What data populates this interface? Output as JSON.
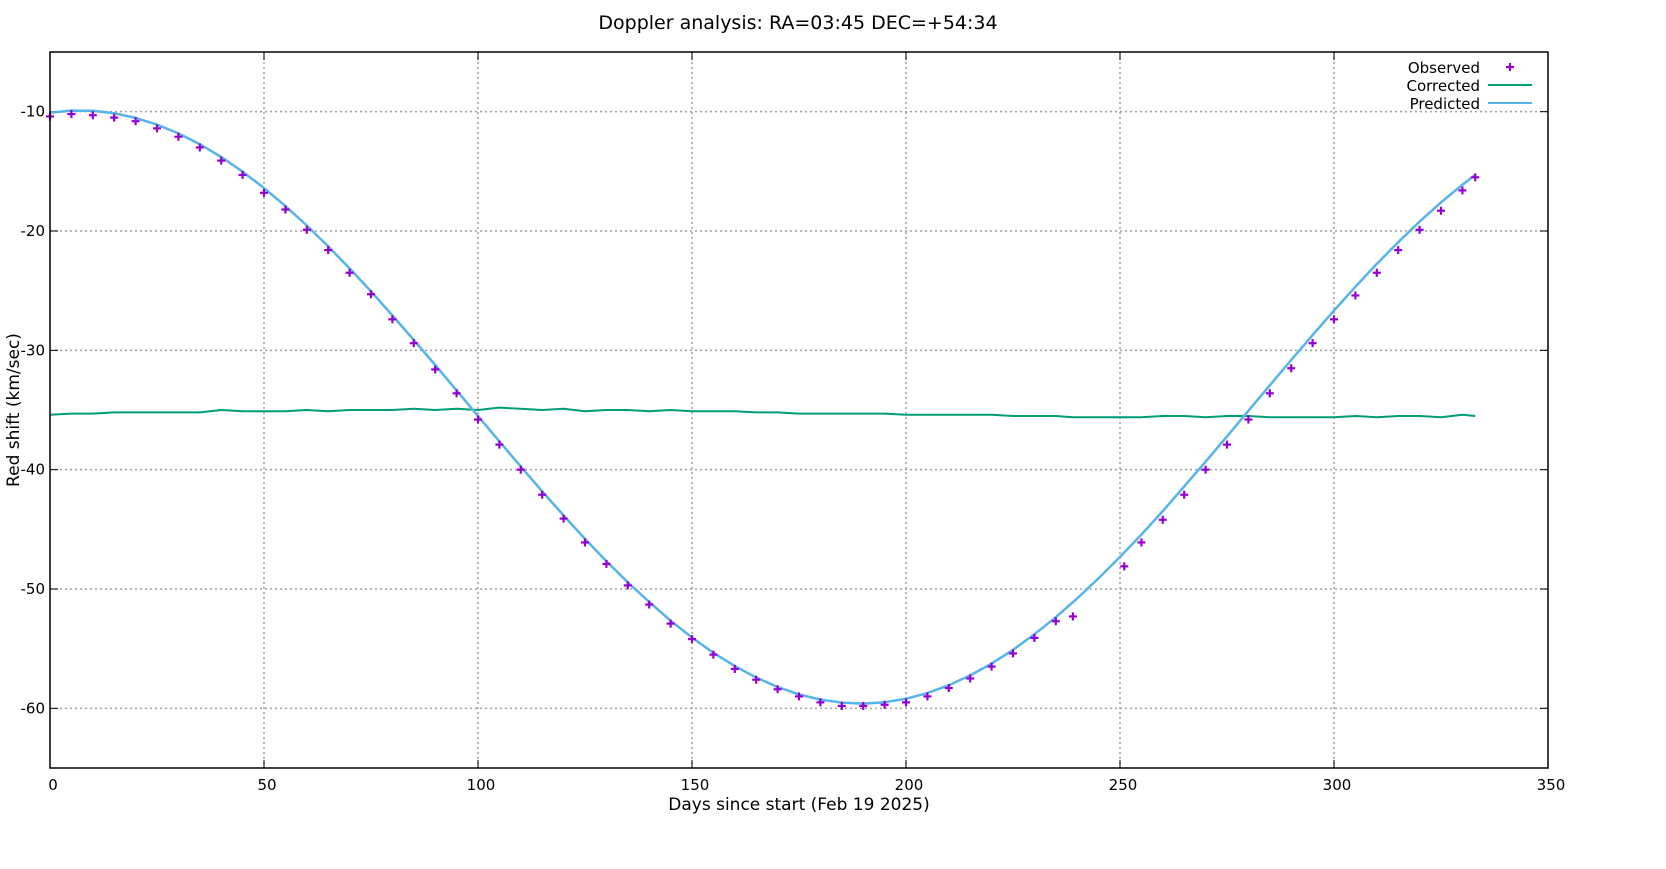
{
  "chart_data": {
    "type": "line",
    "title": "Doppler analysis: RA=03:45 DEC=+54:34",
    "xlabel": "Days since start (Feb 19 2025)",
    "ylabel": "Red shift (km/sec)",
    "xlim": [
      0,
      350
    ],
    "ylim": [
      -65,
      -5
    ],
    "xticks": [
      0,
      50,
      100,
      150,
      200,
      250,
      300,
      350
    ],
    "yticks": [
      -10,
      -20,
      -30,
      -40,
      -50,
      -60
    ],
    "grid": true,
    "legend_position": "top-right",
    "series": [
      {
        "name": "Observed",
        "style": "points",
        "color": "#9400d3",
        "x": [
          0,
          5,
          10,
          15,
          20,
          25,
          30,
          35,
          40,
          45,
          50,
          55,
          60,
          65,
          70,
          75,
          80,
          85,
          90,
          95,
          100,
          105,
          110,
          115,
          120,
          125,
          130,
          135,
          140,
          145,
          150,
          155,
          160,
          165,
          170,
          175,
          180,
          185,
          190,
          195,
          200,
          205,
          210,
          215,
          220,
          225,
          230,
          235,
          239,
          251,
          255,
          260,
          265,
          270,
          275,
          280,
          285,
          290,
          295,
          300,
          305,
          310,
          315,
          320,
          325,
          330,
          333
        ],
        "y": [
          -10.4,
          -10.2,
          -10.3,
          -10.5,
          -10.8,
          -11.4,
          -12.1,
          -13.0,
          -14.1,
          -15.3,
          -16.8,
          -18.2,
          -19.9,
          -21.6,
          -23.5,
          -25.3,
          -27.4,
          -29.4,
          -31.6,
          -33.6,
          -35.8,
          -37.9,
          -40.0,
          -42.1,
          -44.1,
          -46.1,
          -47.9,
          -49.7,
          -51.3,
          -52.9,
          -54.2,
          -55.5,
          -56.7,
          -57.6,
          -58.4,
          -59.0,
          -59.5,
          -59.8,
          -59.8,
          -59.7,
          -59.5,
          -59.0,
          -58.3,
          -57.5,
          -56.5,
          -55.4,
          -54.1,
          -52.7,
          -52.3,
          -48.1,
          -46.1,
          -44.2,
          -42.1,
          -40.0,
          -37.9,
          -35.8,
          -33.6,
          -31.5,
          -29.4,
          -27.4,
          -25.4,
          -23.5,
          -21.6,
          -19.9,
          -18.3,
          -16.6,
          -15.5
        ]
      },
      {
        "name": "Corrected",
        "style": "line",
        "color": "#009e73",
        "x": [
          0,
          5,
          10,
          15,
          20,
          25,
          30,
          35,
          40,
          45,
          50,
          55,
          60,
          65,
          70,
          75,
          80,
          85,
          90,
          95,
          100,
          105,
          110,
          115,
          120,
          125,
          130,
          135,
          140,
          145,
          150,
          155,
          160,
          165,
          170,
          175,
          180,
          185,
          190,
          195,
          200,
          205,
          210,
          215,
          220,
          225,
          230,
          235,
          239,
          251,
          255,
          260,
          265,
          270,
          275,
          280,
          285,
          290,
          295,
          300,
          305,
          310,
          315,
          320,
          325,
          330,
          333
        ],
        "y": [
          -35.4,
          -35.3,
          -35.3,
          -35.2,
          -35.2,
          -35.2,
          -35.2,
          -35.2,
          -35.0,
          -35.1,
          -35.1,
          -35.1,
          -35.0,
          -35.1,
          -35.0,
          -35.0,
          -35.0,
          -34.9,
          -35.0,
          -34.9,
          -35.0,
          -34.8,
          -34.9,
          -35.0,
          -34.9,
          -35.1,
          -35.0,
          -35.0,
          -35.1,
          -35.0,
          -35.1,
          -35.1,
          -35.1,
          -35.2,
          -35.2,
          -35.3,
          -35.3,
          -35.3,
          -35.3,
          -35.3,
          -35.4,
          -35.4,
          -35.4,
          -35.4,
          -35.4,
          -35.5,
          -35.5,
          -35.5,
          -35.6,
          -35.6,
          -35.6,
          -35.5,
          -35.5,
          -35.6,
          -35.5,
          -35.5,
          -35.6,
          -35.6,
          -35.6,
          -35.6,
          -35.5,
          -35.6,
          -35.5,
          -35.5,
          -35.6,
          -35.4,
          -35.5
        ]
      },
      {
        "name": "Predicted",
        "style": "line",
        "color": "#56b4e9",
        "x": [
          0,
          5,
          10,
          15,
          20,
          25,
          30,
          35,
          40,
          45,
          50,
          55,
          60,
          65,
          70,
          75,
          80,
          85,
          90,
          95,
          100,
          105,
          110,
          115,
          120,
          125,
          130,
          135,
          140,
          145,
          150,
          155,
          160,
          165,
          170,
          175,
          180,
          185,
          190,
          195,
          200,
          205,
          210,
          215,
          220,
          225,
          230,
          235,
          240,
          245,
          250,
          255,
          260,
          265,
          270,
          275,
          280,
          285,
          290,
          295,
          300,
          305,
          310,
          315,
          320,
          325,
          330,
          333
        ],
        "y": [
          -10.08,
          -9.91,
          -9.93,
          -10.13,
          -10.52,
          -11.08,
          -11.82,
          -12.73,
          -13.8,
          -15.03,
          -16.4,
          -17.91,
          -19.54,
          -21.29,
          -23.13,
          -25.06,
          -27.07,
          -29.13,
          -31.23,
          -33.36,
          -35.5,
          -37.63,
          -39.74,
          -41.81,
          -43.84,
          -45.8,
          -47.67,
          -49.44,
          -51.09,
          -52.66,
          -54.07,
          -55.35,
          -56.46,
          -57.42,
          -58.21,
          -58.83,
          -59.27,
          -59.52,
          -59.6,
          -59.49,
          -59.2,
          -58.72,
          -58.07,
          -57.24,
          -56.25,
          -55.1,
          -53.8,
          -52.36,
          -50.79,
          -49.1,
          -47.31,
          -45.44,
          -43.47,
          -41.4,
          -39.33,
          -37.21,
          -35.07,
          -32.93,
          -30.81,
          -28.72,
          -26.67,
          -24.68,
          -22.76,
          -20.94,
          -19.21,
          -17.6,
          -16.12,
          -15.3
        ]
      }
    ]
  }
}
